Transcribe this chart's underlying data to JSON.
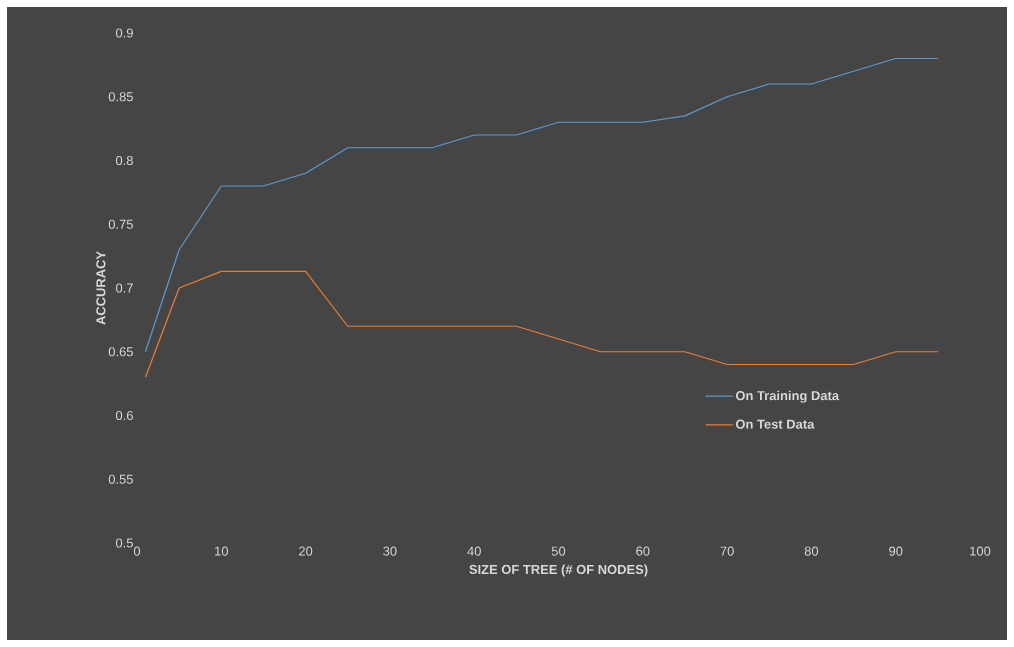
{
  "chart_data": {
    "type": "line",
    "xlabel": "SIZE OF TREE (# OF NODES)",
    "ylabel": "ACCURACY",
    "x": [
      1,
      5,
      10,
      15,
      20,
      25,
      30,
      35,
      40,
      45,
      50,
      55,
      60,
      65,
      70,
      75,
      80,
      85,
      90,
      95
    ],
    "series": [
      {
        "name": "On Training Data",
        "color": "#5b9bd5",
        "values": [
          0.65,
          0.73,
          0.78,
          0.78,
          0.79,
          0.81,
          0.81,
          0.81,
          0.82,
          0.82,
          0.83,
          0.83,
          0.83,
          0.835,
          0.85,
          0.86,
          0.86,
          0.87,
          0.88,
          0.88
        ]
      },
      {
        "name": "On Test Data",
        "color": "#ed7d31",
        "values": [
          0.63,
          0.7,
          0.713,
          0.713,
          0.713,
          0.67,
          0.67,
          0.67,
          0.67,
          0.67,
          0.66,
          0.65,
          0.65,
          0.65,
          0.64,
          0.64,
          0.64,
          0.64,
          0.65,
          0.65
        ]
      }
    ],
    "xlim": [
      0,
      100
    ],
    "ylim": [
      0.5,
      0.9
    ],
    "xticks": [
      0,
      10,
      20,
      30,
      40,
      50,
      60,
      70,
      80,
      90,
      100
    ],
    "yticks": [
      0.5,
      0.55,
      0.6,
      0.65,
      0.7,
      0.75,
      0.8,
      0.85,
      0.9
    ],
    "legend": "right"
  }
}
